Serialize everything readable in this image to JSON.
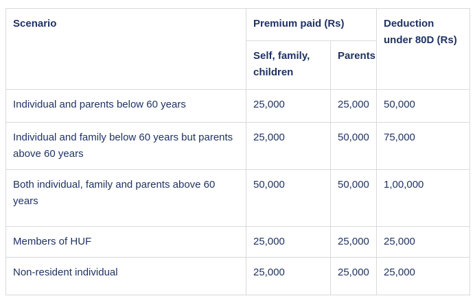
{
  "colors": {
    "text": "#1e3264",
    "border": "#d9d9d9",
    "background": "#ffffff"
  },
  "table": {
    "headers": {
      "scenario": "Scenario",
      "premium_group": "Premium paid (Rs)",
      "self_family_children": "Self, family, children",
      "parents": "Parents",
      "deduction": "Deduction under 80D (Rs)"
    },
    "rows": [
      {
        "scenario": "Individual and parents below 60 years",
        "self_family_children": "25,000",
        "parents": "25,000",
        "deduction": "50,000"
      },
      {
        "scenario": "Individual and family below 60 years but parents above 60 years",
        "self_family_children": "25,000",
        "parents": "50,000",
        "deduction": "75,000"
      },
      {
        "scenario": "Both individual, family and parents above 60 years",
        "self_family_children": "50,000",
        "parents": "50,000",
        "deduction": "1,00,000"
      },
      {
        "scenario": "Members of HUF",
        "self_family_children": "25,000",
        "parents": "25,000",
        "deduction": "25,000"
      },
      {
        "scenario": "Non-resident individual",
        "self_family_children": "25,000",
        "parents": "25,000",
        "deduction": "25,000"
      }
    ]
  }
}
